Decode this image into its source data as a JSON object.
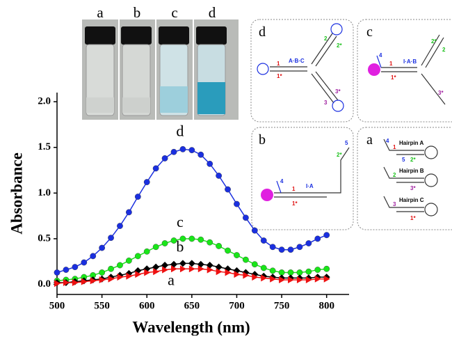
{
  "chart_data": {
    "type": "line",
    "xlabel": "Wavelength (nm)",
    "ylabel": "Absorbance",
    "x": [
      500,
      510,
      520,
      530,
      540,
      550,
      560,
      570,
      580,
      590,
      600,
      610,
      620,
      630,
      640,
      650,
      660,
      670,
      680,
      690,
      700,
      710,
      720,
      730,
      740,
      750,
      760,
      770,
      780,
      790,
      800
    ],
    "series": [
      {
        "name": "d",
        "color": "#1a2fe0",
        "marker": "circle",
        "values": [
          0.13,
          0.16,
          0.19,
          0.24,
          0.31,
          0.4,
          0.51,
          0.64,
          0.79,
          0.96,
          1.12,
          1.27,
          1.38,
          1.45,
          1.48,
          1.47,
          1.42,
          1.32,
          1.19,
          1.04,
          0.88,
          0.73,
          0.59,
          0.48,
          0.41,
          0.38,
          0.38,
          0.41,
          0.45,
          0.5,
          0.54
        ]
      },
      {
        "name": "c",
        "color": "#19e619",
        "marker": "circle",
        "values": [
          0.04,
          0.05,
          0.06,
          0.08,
          0.1,
          0.13,
          0.17,
          0.21,
          0.26,
          0.31,
          0.36,
          0.41,
          0.45,
          0.48,
          0.5,
          0.5,
          0.49,
          0.46,
          0.42,
          0.37,
          0.32,
          0.27,
          0.22,
          0.18,
          0.15,
          0.13,
          0.13,
          0.13,
          0.14,
          0.16,
          0.17
        ]
      },
      {
        "name": "b",
        "color": "#000000",
        "marker": "diamond",
        "values": [
          0.02,
          0.02,
          0.03,
          0.04,
          0.05,
          0.06,
          0.08,
          0.1,
          0.12,
          0.15,
          0.17,
          0.19,
          0.21,
          0.22,
          0.23,
          0.23,
          0.22,
          0.21,
          0.19,
          0.17,
          0.15,
          0.13,
          0.11,
          0.09,
          0.08,
          0.07,
          0.07,
          0.07,
          0.07,
          0.08,
          0.08
        ]
      },
      {
        "name": "a",
        "color": "#ee1111",
        "marker": "triangle",
        "values": [
          0.01,
          0.02,
          0.02,
          0.03,
          0.04,
          0.05,
          0.06,
          0.08,
          0.09,
          0.11,
          0.13,
          0.14,
          0.16,
          0.17,
          0.17,
          0.17,
          0.17,
          0.16,
          0.14,
          0.13,
          0.11,
          0.1,
          0.08,
          0.07,
          0.06,
          0.05,
          0.05,
          0.05,
          0.05,
          0.06,
          0.06
        ]
      }
    ],
    "xlim": [
      500,
      825
    ],
    "xticks": [
      500,
      550,
      600,
      650,
      700,
      750,
      800
    ],
    "ylim": [
      -0.11,
      2.1
    ],
    "yticks": [
      {
        "value": 0,
        "label": "0.0"
      },
      {
        "value": 0.5,
        "label": "0.5"
      },
      {
        "value": 1,
        "label": "1.0"
      },
      {
        "value": 1.5,
        "label": "1.5"
      },
      {
        "value": 2,
        "label": "2.0"
      }
    ]
  },
  "photo": {
    "labels": [
      "a",
      "b",
      "c",
      "d"
    ]
  },
  "diagrams": {
    "d": {
      "label": "d",
      "texts": [
        "A·B·C",
        "1",
        "1*",
        "2",
        "2*",
        "3",
        "3*"
      ]
    },
    "c": {
      "label": "c",
      "texts": [
        "I·A·B",
        "4",
        "1",
        "1*",
        "2*",
        "2",
        "3*"
      ]
    },
    "b": {
      "label": "b",
      "texts": [
        "I·A",
        "4",
        "1",
        "1*",
        "2*",
        "5"
      ]
    },
    "a": {
      "label": "a",
      "texts": [
        "Hairpin A",
        "Hairpin B",
        "Hairpin C",
        "4",
        "1",
        "5",
        "2*",
        "2",
        "3*",
        "3",
        "1*"
      ]
    }
  }
}
